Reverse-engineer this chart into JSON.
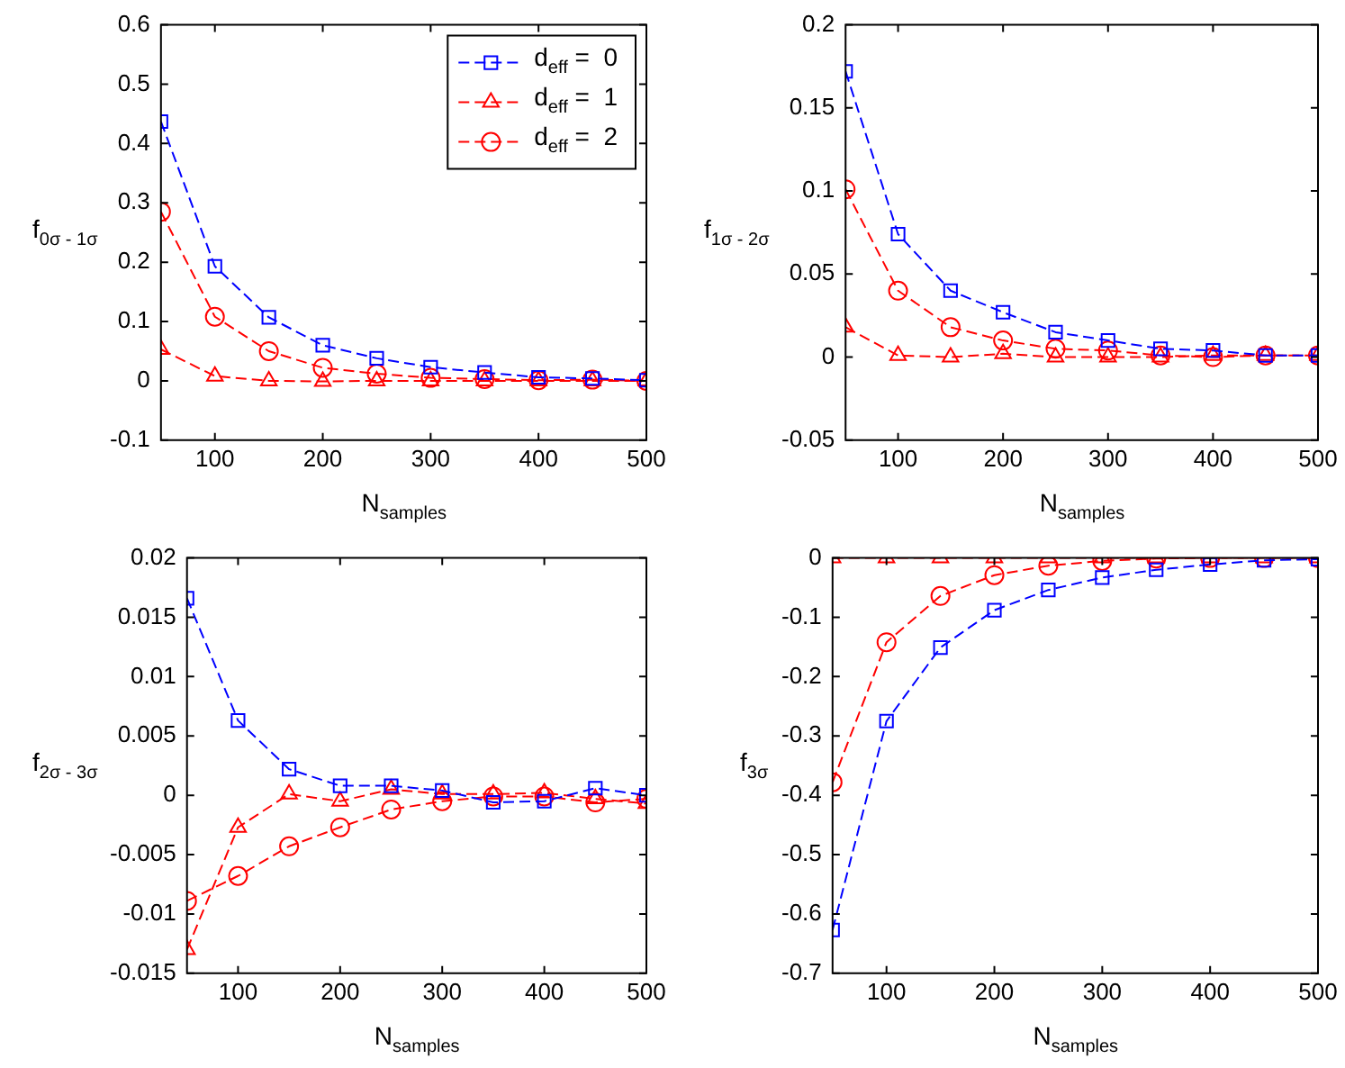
{
  "chart_data": [
    {
      "type": "line",
      "xlabel": "N$_{samples}$",
      "ylabel": "f$_{0σ - 1σ}$",
      "x": [
        50,
        100,
        150,
        200,
        250,
        300,
        350,
        400,
        450,
        500
      ],
      "xlim": [
        50,
        500
      ],
      "xticks": [
        100,
        200,
        300,
        400,
        500
      ],
      "ylim": [
        -0.1,
        0.6
      ],
      "yticks": [
        -0.1,
        0,
        0.1,
        0.2,
        0.3,
        0.4,
        0.5,
        0.6
      ],
      "grid": false,
      "legend": "top right",
      "line_style": "dashed",
      "series": [
        {
          "name": "d$_{eff}$ =  0",
          "color": "#0000ff",
          "marker": "square",
          "values": [
            0.437,
            0.193,
            0.107,
            0.06,
            0.038,
            0.023,
            0.014,
            0.006,
            0.004,
            0.001
          ]
        },
        {
          "name": "d$_{eff}$ =  1",
          "color": "#ff0000",
          "marker": "triangle",
          "values": [
            0.053,
            0.008,
            0.0,
            -0.001,
            0.0,
            0.0,
            0.0,
            0.0,
            0.0,
            0.0
          ]
        },
        {
          "name": "d$_{eff}$ =  2",
          "color": "#ff0000",
          "marker": "circle",
          "values": [
            0.285,
            0.108,
            0.05,
            0.022,
            0.012,
            0.005,
            0.003,
            0.001,
            0.002,
            0.0
          ]
        }
      ]
    },
    {
      "type": "line",
      "xlabel": "N$_{samples}$",
      "ylabel": "f$_{1σ - 2σ}$",
      "x": [
        50,
        100,
        150,
        200,
        250,
        300,
        350,
        400,
        450,
        500
      ],
      "xlim": [
        50,
        500
      ],
      "xticks": [
        100,
        200,
        300,
        400,
        500
      ],
      "ylim": [
        -0.05,
        0.2
      ],
      "yticks": [
        -0.05,
        0,
        0.05,
        0.1,
        0.15,
        0.2
      ],
      "grid": false,
      "line_style": "dashed",
      "series": [
        {
          "color": "#0000ff",
          "marker": "square",
          "values": [
            0.172,
            0.074,
            0.04,
            0.027,
            0.015,
            0.01,
            0.005,
            0.004,
            0.001,
            0.001
          ]
        },
        {
          "color": "#ff0000",
          "marker": "triangle",
          "values": [
            0.018,
            0.001,
            0.0,
            0.002,
            0.0,
            0.0,
            0.0,
            0.001,
            0.001,
            0.001
          ]
        },
        {
          "color": "#ff0000",
          "marker": "circle",
          "values": [
            0.101,
            0.04,
            0.018,
            0.01,
            0.005,
            0.004,
            0.001,
            0.0,
            0.001,
            0.001
          ]
        }
      ]
    },
    {
      "type": "line",
      "xlabel": "N$_{samples}$",
      "ylabel": "f$_{2σ - 3σ}$",
      "x": [
        50,
        100,
        150,
        200,
        250,
        300,
        350,
        400,
        450,
        500
      ],
      "xlim": [
        50,
        500
      ],
      "xticks": [
        100,
        200,
        300,
        400,
        500
      ],
      "ylim": [
        -0.015,
        0.02
      ],
      "yticks": [
        -0.015,
        -0.01,
        -0.005,
        0,
        0.005,
        0.01,
        0.015,
        0.02
      ],
      "grid": false,
      "line_style": "dashed",
      "series": [
        {
          "color": "#0000ff",
          "marker": "square",
          "values": [
            0.0166,
            0.0063,
            0.0022,
            0.0008,
            0.0008,
            0.0004,
            -0.0006,
            -0.0005,
            0.0006,
            0.0
          ]
        },
        {
          "color": "#ff0000",
          "marker": "triangle",
          "values": [
            -0.013,
            -0.0027,
            0.0001,
            -0.0005,
            0.0005,
            0.0001,
            0.0001,
            0.0002,
            -0.0003,
            -0.0007
          ]
        },
        {
          "color": "#ff0000",
          "marker": "circle",
          "values": [
            -0.0089,
            -0.0068,
            -0.0043,
            -0.0027,
            -0.0012,
            -0.0005,
            -0.0001,
            -0.0001,
            -0.0006,
            -0.0003
          ]
        }
      ]
    },
    {
      "type": "line",
      "xlabel": "N$_{samples}$",
      "ylabel": "f$_{3σ}$",
      "x": [
        50,
        100,
        150,
        200,
        250,
        300,
        350,
        400,
        450,
        500
      ],
      "xlim": [
        50,
        500
      ],
      "xticks": [
        100,
        200,
        300,
        400,
        500
      ],
      "ylim": [
        -0.7,
        0
      ],
      "yticks": [
        -0.7,
        -0.6,
        -0.5,
        -0.4,
        -0.3,
        -0.2,
        -0.1,
        0
      ],
      "grid": false,
      "line_style": "dashed",
      "series": [
        {
          "color": "#0000ff",
          "marker": "square",
          "values": [
            -0.627,
            -0.275,
            -0.151,
            -0.088,
            -0.054,
            -0.033,
            -0.02,
            -0.011,
            -0.004,
            -0.002
          ]
        },
        {
          "color": "#ff0000",
          "marker": "triangle",
          "values": [
            0,
            0,
            0,
            0,
            0,
            0,
            0,
            0,
            0,
            0
          ]
        },
        {
          "color": "#ff0000",
          "marker": "circle",
          "values": [
            -0.378,
            -0.142,
            -0.064,
            -0.029,
            -0.013,
            -0.005,
            -0.001,
            0,
            0,
            0
          ]
        }
      ]
    }
  ]
}
